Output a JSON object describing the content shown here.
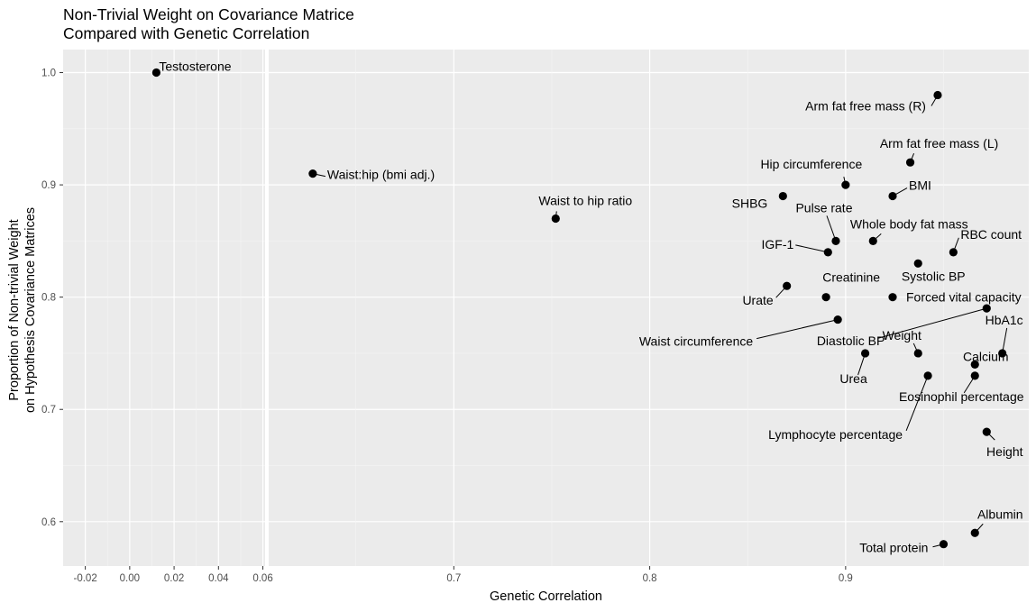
{
  "chart_data": {
    "type": "scatter",
    "title": [
      "Non-Trivial Weight on Covariance Matrice",
      "Compared with Genetic Correlation"
    ],
    "xlabel": "Genetic Correlation",
    "ylabel": [
      "Proportion of Non-trivial Weight",
      "on Hypothesis Covariance Matrices"
    ],
    "xaxis_segments": [
      {
        "xlim": [
          -0.03,
          0.061
        ],
        "ticks": [
          "-0.02",
          "0.00",
          "0.02",
          "0.04",
          "0.06"
        ],
        "tick_values": [
          -0.02,
          0.0,
          0.02,
          0.04,
          0.06
        ]
      },
      {
        "xlim": [
          0.6055,
          0.9935
        ],
        "ticks": [
          "0.7",
          "0.8",
          "0.9"
        ],
        "tick_values": [
          0.7,
          0.8,
          0.9
        ]
      }
    ],
    "ylim": [
      0.5605,
      1.0205
    ],
    "yticks": [
      "0.6",
      "0.7",
      "0.8",
      "0.9",
      "1.0"
    ],
    "ytick_values": [
      0.6,
      0.7,
      0.8,
      0.9,
      1.0
    ],
    "grid": true,
    "points": [
      {
        "label": "Testosterone",
        "x": 0.012,
        "y": 1.0
      },
      {
        "label": "Waist:hip (bmi adj.)",
        "x": 0.628,
        "y": 0.91
      },
      {
        "label": "Waist to hip ratio",
        "x": 0.752,
        "y": 0.87
      },
      {
        "label": "Arm fat free mass (R)",
        "x": 0.947,
        "y": 0.98
      },
      {
        "label": "Arm fat free mass (L)",
        "x": 0.933,
        "y": 0.92
      },
      {
        "label": "Hip circumference",
        "x": 0.9,
        "y": 0.9
      },
      {
        "label": "BMI",
        "x": 0.924,
        "y": 0.89
      },
      {
        "label": "SHBG",
        "x": 0.868,
        "y": 0.89
      },
      {
        "label": "Pulse rate",
        "x": 0.895,
        "y": 0.85
      },
      {
        "label": "Whole body fat mass",
        "x": 0.914,
        "y": 0.85
      },
      {
        "label": "IGF-1",
        "x": 0.891,
        "y": 0.84
      },
      {
        "label": "RBC count",
        "x": 0.955,
        "y": 0.84
      },
      {
        "label": "Systolic BP",
        "x": 0.937,
        "y": 0.83
      },
      {
        "label": "Urate",
        "x": 0.87,
        "y": 0.81
      },
      {
        "label": "Creatinine",
        "x": 0.89,
        "y": 0.8
      },
      {
        "label": "Forced vital capacity",
        "x": 0.924,
        "y": 0.8
      },
      {
        "label": "Waist circumference",
        "x": 0.896,
        "y": 0.78
      },
      {
        "label": "Diastolic BP",
        "x": 0.972,
        "y": 0.79
      },
      {
        "label": "HbA1c",
        "x": 0.98,
        "y": 0.75
      },
      {
        "label": "Weight",
        "x": 0.937,
        "y": 0.75
      },
      {
        "label": "Urea",
        "x": 0.91,
        "y": 0.75
      },
      {
        "label": "Calcium",
        "x": 0.966,
        "y": 0.74
      },
      {
        "label": "Eosinophil percentage",
        "x": 0.966,
        "y": 0.73
      },
      {
        "label": "Lymphocyte percentage",
        "x": 0.942,
        "y": 0.73
      },
      {
        "label": "Height",
        "x": 0.972,
        "y": 0.68
      },
      {
        "label": "Albumin",
        "x": 0.966,
        "y": 0.59
      },
      {
        "label": "Total protein",
        "x": 0.95,
        "y": 0.58
      }
    ]
  }
}
